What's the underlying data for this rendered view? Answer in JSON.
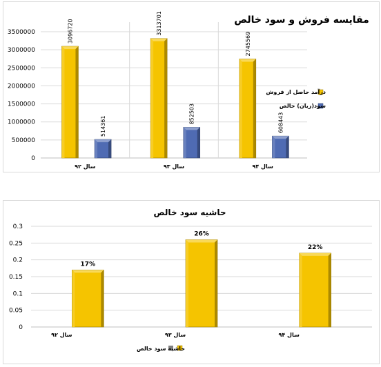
{
  "chart_data": [
    {
      "type": "bar",
      "title": "مقایسه فروش و سود خالص",
      "categories": [
        "سال ۹۲",
        "سال ۹۳",
        "سال ۹۴"
      ],
      "series": [
        {
          "name": "درآمد حاصل از فروش",
          "values": [
            3096720,
            3313701,
            2745569
          ],
          "labels": [
            "3096720",
            "3313701",
            "2745569"
          ],
          "color": "#F5C400"
        },
        {
          "name": "سود(زیان) خالص",
          "values": [
            514361,
            852503,
            608443
          ],
          "labels": [
            "514361",
            "852503",
            "608443"
          ],
          "color": "#4F6BB3"
        }
      ],
      "yticks": [
        "0",
        "500000",
        "1000000",
        "1500000",
        "2000000",
        "2500000",
        "3000000",
        "3500000"
      ],
      "ylim": [
        0,
        3500000
      ],
      "grid": true,
      "legend": "right"
    },
    {
      "type": "bar",
      "title": "حاشیه سود خالص",
      "categories": [
        "سال ۹۲",
        "سال ۹۳",
        "سال ۹۴"
      ],
      "series": [
        {
          "name": "حاشیه سود خالص",
          "values": [
            0.17,
            0.26,
            0.22
          ],
          "labels": [
            "17%",
            "26%",
            "22%"
          ],
          "color": "#F5C400"
        }
      ],
      "yticks": [
        "0",
        "0.05",
        "0.1",
        "0.15",
        "0.2",
        "0.25",
        "0.3"
      ],
      "ylim": [
        0,
        0.3
      ],
      "grid": true,
      "legend": "bottom"
    }
  ],
  "legend_marker_color": "#808080"
}
